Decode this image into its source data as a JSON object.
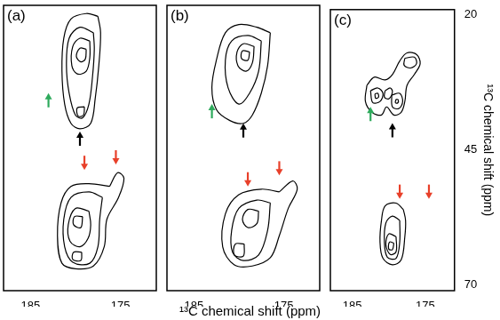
{
  "chart_data": [
    {
      "type": "contour",
      "title": "(a)",
      "xlim": [
        188,
        171
      ],
      "ylim": [
        71,
        19
      ],
      "xticks": [
        185,
        175
      ],
      "yticks": [
        20,
        45,
        70
      ],
      "tick_labels": "x",
      "color": "#000000",
      "contours": [
        [
          [
            177.5,
            21
          ],
          [
            178.8,
            20.5
          ],
          [
            180.5,
            21.5
          ],
          [
            181.3,
            25
          ],
          [
            181.5,
            31
          ],
          [
            181.2,
            37
          ],
          [
            180.5,
            40.5
          ],
          [
            179.5,
            41.5
          ],
          [
            178.3,
            40.5
          ],
          [
            177.8,
            36
          ],
          [
            177.4,
            30
          ],
          [
            177.2,
            24
          ]
        ],
        [
          [
            178,
            24
          ],
          [
            179.5,
            23
          ],
          [
            180.7,
            25
          ],
          [
            181,
            30
          ],
          [
            180.7,
            35
          ],
          [
            180,
            39
          ],
          [
            179.2,
            39.5
          ],
          [
            178.5,
            37
          ],
          [
            178.1,
            32
          ],
          [
            177.9,
            27
          ]
        ],
        [
          [
            178.4,
            25.5
          ],
          [
            179.5,
            25
          ],
          [
            180.3,
            26.5
          ],
          [
            180.4,
            30
          ],
          [
            179.8,
            31.5
          ],
          [
            178.8,
            31
          ],
          [
            178.4,
            28.5
          ]
        ],
        [
          [
            178.8,
            27
          ],
          [
            179.5,
            26.8
          ],
          [
            179.9,
            28.3
          ],
          [
            179.4,
            29.3
          ],
          [
            178.9,
            28.8
          ]
        ],
        [
          [
            179,
            37.5
          ],
          [
            179.8,
            37.7
          ],
          [
            179.7,
            39.2
          ],
          [
            179.1,
            39
          ]
        ],
        [
          [
            176.2,
            52
          ],
          [
            175.3,
            49.5
          ],
          [
            174.6,
            50.5
          ],
          [
            175.2,
            54
          ],
          [
            176.5,
            58
          ],
          [
            176.8,
            63
          ],
          [
            178,
            66.5
          ],
          [
            180,
            67
          ],
          [
            181.5,
            66
          ],
          [
            182,
            61
          ],
          [
            181.6,
            55
          ],
          [
            180.5,
            52
          ],
          [
            178.5,
            51.5
          ]
        ],
        [
          [
            177,
            54
          ],
          [
            178.5,
            53
          ],
          [
            180.5,
            54
          ],
          [
            181.3,
            58
          ],
          [
            181.2,
            63
          ],
          [
            180.3,
            65.8
          ],
          [
            178.4,
            66
          ],
          [
            177.5,
            63
          ],
          [
            177.3,
            58
          ]
        ],
        [
          [
            178.5,
            56.5
          ],
          [
            180,
            56
          ],
          [
            180.8,
            59
          ],
          [
            180.6,
            62
          ],
          [
            179.5,
            63
          ],
          [
            178.6,
            61.5
          ],
          [
            178.3,
            59
          ]
        ],
        [
          [
            179.2,
            57.5
          ],
          [
            180.1,
            57.5
          ],
          [
            180.2,
            59
          ],
          [
            179.4,
            59.5
          ]
        ],
        [
          [
            179.3,
            64
          ],
          [
            180.2,
            64
          ],
          [
            180.3,
            65.3
          ],
          [
            179.4,
            65.5
          ]
        ]
      ],
      "arrows": [
        {
          "x": 183,
          "y": 35,
          "color": "#2eaa5c",
          "direction": "up"
        },
        {
          "x": 179.5,
          "y": 42,
          "color": "#000000",
          "direction": "up"
        },
        {
          "x": 179,
          "y": 49,
          "color": "#e8402a",
          "direction": "down"
        },
        {
          "x": 175.5,
          "y": 48,
          "color": "#e8402a",
          "direction": "down"
        }
      ]
    },
    {
      "type": "contour",
      "title": "(b)",
      "xlim": [
        188,
        171
      ],
      "ylim": [
        71,
        19
      ],
      "xticks": [
        185,
        175
      ],
      "yticks": [
        20,
        45,
        70
      ],
      "tick_labels": "x",
      "color": "#000000",
      "xlabel": "¹³C chemical shift (ppm)",
      "contours": [
        [
          [
            176.5,
            24
          ],
          [
            178,
            23
          ],
          [
            180,
            22.5
          ],
          [
            181.5,
            24
          ],
          [
            182.5,
            29
          ],
          [
            183,
            34
          ],
          [
            182.5,
            38
          ],
          [
            181,
            40
          ],
          [
            179.5,
            40.5
          ],
          [
            178.5,
            39
          ],
          [
            177.5,
            35
          ],
          [
            176.8,
            30
          ]
        ],
        [
          [
            177.5,
            25.5
          ],
          [
            179,
            24.5
          ],
          [
            180.8,
            25.5
          ],
          [
            181.5,
            29
          ],
          [
            181.2,
            34
          ],
          [
            180,
            37
          ],
          [
            178.8,
            35
          ],
          [
            177.8,
            31
          ]
        ],
        [
          [
            178.3,
            26.5
          ],
          [
            179.5,
            26
          ],
          [
            180.2,
            27.5
          ],
          [
            180.1,
            30
          ],
          [
            179.2,
            31
          ],
          [
            178.5,
            29.5
          ]
        ],
        [
          [
            178.8,
            27.5
          ],
          [
            179.6,
            27.3
          ],
          [
            179.7,
            28.7
          ],
          [
            179,
            29
          ]
        ],
        [
          [
            175.5,
            53
          ],
          [
            174,
            51
          ],
          [
            173.5,
            52.5
          ],
          [
            174.5,
            56
          ],
          [
            175.5,
            61
          ],
          [
            176.5,
            65
          ],
          [
            178.5,
            66.5
          ],
          [
            180.5,
            66.3
          ],
          [
            181.8,
            63
          ],
          [
            181.5,
            57
          ],
          [
            180,
            53.5
          ],
          [
            177.5,
            52.5
          ]
        ],
        [
          [
            176.5,
            55
          ],
          [
            178,
            54.5
          ],
          [
            180,
            56
          ],
          [
            180.8,
            60
          ],
          [
            180.7,
            64
          ],
          [
            179.5,
            65.5
          ],
          [
            177.8,
            64.5
          ],
          [
            176.8,
            60
          ]
        ],
        [
          [
            177.8,
            56.5
          ],
          [
            179,
            56.2
          ],
          [
            179.6,
            58
          ],
          [
            179,
            59.5
          ],
          [
            178,
            58.8
          ]
        ],
        [
          [
            179.4,
            62.5
          ],
          [
            180.4,
            62.5
          ],
          [
            180.5,
            64.5
          ],
          [
            179.5,
            64.7
          ]
        ]
      ],
      "arrows": [
        {
          "x": 183,
          "y": 37,
          "color": "#2eaa5c",
          "direction": "up"
        },
        {
          "x": 179.5,
          "y": 40.5,
          "color": "#000000",
          "direction": "up"
        },
        {
          "x": 179,
          "y": 52,
          "color": "#e8402a",
          "direction": "down"
        },
        {
          "x": 175.5,
          "y": 50,
          "color": "#e8402a",
          "direction": "down"
        }
      ]
    },
    {
      "type": "contour",
      "title": "(c)",
      "xlim": [
        188,
        171
      ],
      "ylim": [
        71,
        19
      ],
      "xticks": [
        185,
        175
      ],
      "yticks": [
        20,
        45,
        70
      ],
      "tick_labels": true,
      "color": "#000000",
      "ylabel": "¹³C chemical shift (ppm)",
      "contours": [
        [
          [
            183,
            33
          ],
          [
            182,
            31.5
          ],
          [
            180.5,
            32
          ],
          [
            179.5,
            31
          ],
          [
            178.5,
            28.5
          ],
          [
            177.5,
            27
          ],
          [
            176.2,
            27.3
          ],
          [
            175.7,
            29
          ],
          [
            176.5,
            31
          ],
          [
            177.5,
            33
          ],
          [
            177.8,
            36
          ],
          [
            178.3,
            38
          ],
          [
            179.3,
            38.5
          ],
          [
            180.3,
            37
          ],
          [
            181,
            38.5
          ],
          [
            182.3,
            38
          ],
          [
            183.2,
            36
          ]
        ],
        [
          [
            182.5,
            34
          ],
          [
            181.5,
            33.5
          ],
          [
            180.8,
            34.5
          ],
          [
            181.2,
            36
          ],
          [
            182.2,
            36.2
          ]
        ],
        [
          [
            181.9,
            34.6
          ],
          [
            181.5,
            34.5
          ],
          [
            181.4,
            35.2
          ],
          [
            181.8,
            35.4
          ]
        ],
        [
          [
            179.6,
            34.8
          ],
          [
            178.5,
            34.5
          ],
          [
            178.1,
            36
          ],
          [
            178.6,
            37.3
          ],
          [
            179.5,
            37
          ]
        ],
        [
          [
            179,
            35.6
          ],
          [
            178.7,
            35.7
          ],
          [
            178.8,
            36.3
          ],
          [
            179.1,
            36.2
          ]
        ],
        [
          [
            177.8,
            28
          ],
          [
            176.5,
            27.8
          ],
          [
            176.2,
            29
          ],
          [
            177,
            29.8
          ],
          [
            177.9,
            29.3
          ]
        ],
        [
          [
            180.5,
            34
          ],
          [
            179.8,
            33.5
          ],
          [
            179.5,
            34.2
          ],
          [
            180,
            35.5
          ],
          [
            180.6,
            35.2
          ]
        ],
        [
          [
            178,
            56
          ],
          [
            179,
            54.8
          ],
          [
            180.5,
            55.3
          ],
          [
            181,
            58
          ],
          [
            181.2,
            62
          ],
          [
            180.8,
            65
          ],
          [
            179.5,
            66.2
          ],
          [
            178.3,
            65.3
          ],
          [
            177.8,
            61
          ],
          [
            177.7,
            58
          ]
        ],
        [
          [
            178.5,
            58
          ],
          [
            179.5,
            57.2
          ],
          [
            180.4,
            58.5
          ],
          [
            180.6,
            62
          ],
          [
            180.2,
            64.8
          ],
          [
            179,
            65
          ],
          [
            178.5,
            62
          ]
        ],
        [
          [
            179,
            61
          ],
          [
            180,
            60.5
          ],
          [
            180.4,
            62.5
          ],
          [
            179.8,
            64.3
          ],
          [
            179,
            63.8
          ]
        ],
        [
          [
            179.3,
            62.2
          ],
          [
            179.9,
            62
          ],
          [
            180,
            63.3
          ],
          [
            179.5,
            63.4
          ]
        ]
      ],
      "arrows": [
        {
          "x": 182.5,
          "y": 37,
          "color": "#2eaa5c",
          "direction": "up"
        },
        {
          "x": 179.5,
          "y": 40,
          "color": "#000000",
          "direction": "up"
        },
        {
          "x": 178.5,
          "y": 54,
          "color": "#e8402a",
          "direction": "down"
        },
        {
          "x": 174.5,
          "y": 54,
          "color": "#e8402a",
          "direction": "down"
        }
      ]
    }
  ]
}
